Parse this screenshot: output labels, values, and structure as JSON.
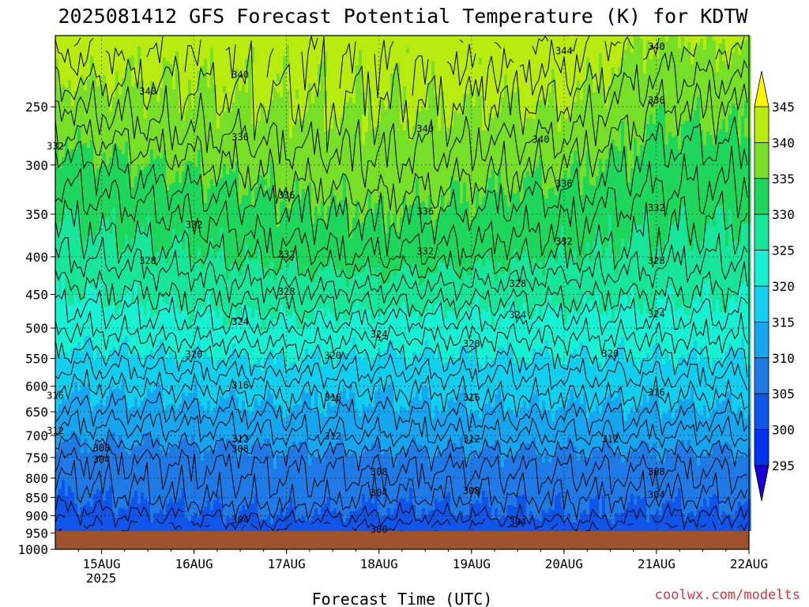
{
  "chart_data": {
    "type": "heatmap",
    "title": "2025081412 GFS Forecast Potential Temperature (K) for KDTW",
    "xlabel": "Forecast Time (UTC)",
    "ylabel": "",
    "y_axis": {
      "scale": "log",
      "inverted": true,
      "range": [
        200,
        1000
      ],
      "ticks": [
        250,
        300,
        350,
        400,
        450,
        500,
        550,
        600,
        650,
        700,
        750,
        800,
        850,
        900,
        950,
        1000
      ],
      "tick_labels": [
        "250",
        "300",
        "350",
        "400",
        "450",
        "500",
        "550",
        "600",
        "650",
        "700",
        "750",
        "800",
        "850",
        "900",
        "950",
        "1000"
      ]
    },
    "x_axis": {
      "range": [
        "2025-08-14T12",
        "2025-08-22T00"
      ],
      "ticks": [
        "2025-08-15T00",
        "2025-08-16T00",
        "2025-08-17T00",
        "2025-08-18T00",
        "2025-08-19T00",
        "2025-08-20T00",
        "2025-08-21T00",
        "2025-08-22T00"
      ],
      "tick_labels": [
        "15AUG",
        "16AUG",
        "17AUG",
        "18AUG",
        "19AUG",
        "20AUG",
        "21AUG",
        "22AUG"
      ],
      "year_label": "2025"
    },
    "colorbar": {
      "levels": [
        295,
        300,
        305,
        310,
        315,
        320,
        325,
        330,
        335,
        340,
        345
      ],
      "labels": [
        "295",
        "300",
        "305",
        "310",
        "315",
        "320",
        "325",
        "330",
        "335",
        "340",
        "345"
      ],
      "colors": [
        "#1a00d6",
        "#0033ee",
        "#0f55ea",
        "#1f7ae6",
        "#16a5ee",
        "#12cfef",
        "#18f0d4",
        "#17e69a",
        "#1ed65c",
        "#78df28",
        "#b8ec10",
        "#fcf400"
      ],
      "extend": "both"
    },
    "profiles": [
      {
        "time": "2025-08-14T12",
        "levels": [
          {
            "pressure": 1000,
            "theta": 300
          },
          {
            "pressure": 950,
            "theta": 301
          },
          {
            "pressure": 900,
            "theta": 303
          },
          {
            "pressure": 850,
            "theta": 305
          },
          {
            "pressure": 750,
            "theta": 308
          },
          {
            "pressure": 700,
            "theta": 311
          },
          {
            "pressure": 600,
            "theta": 316
          },
          {
            "pressure": 500,
            "theta": 322
          },
          {
            "pressure": 400,
            "theta": 328
          },
          {
            "pressure": 300,
            "theta": 333
          },
          {
            "pressure": 250,
            "theta": 338
          },
          {
            "pressure": 200,
            "theta": 344
          }
        ]
      },
      {
        "time": "2025-08-15T12",
        "levels": [
          {
            "pressure": 1000,
            "theta": 299
          },
          {
            "pressure": 950,
            "theta": 302
          },
          {
            "pressure": 900,
            "theta": 304
          },
          {
            "pressure": 850,
            "theta": 306
          },
          {
            "pressure": 750,
            "theta": 308
          },
          {
            "pressure": 700,
            "theta": 311
          },
          {
            "pressure": 600,
            "theta": 316
          },
          {
            "pressure": 500,
            "theta": 323
          },
          {
            "pressure": 400,
            "theta": 329
          },
          {
            "pressure": 300,
            "theta": 335
          },
          {
            "pressure": 250,
            "theta": 339
          },
          {
            "pressure": 200,
            "theta": 342
          }
        ]
      },
      {
        "time": "2025-08-17T00",
        "levels": [
          {
            "pressure": 1000,
            "theta": 301
          },
          {
            "pressure": 950,
            "theta": 302
          },
          {
            "pressure": 900,
            "theta": 305
          },
          {
            "pressure": 850,
            "theta": 307
          },
          {
            "pressure": 750,
            "theta": 309
          },
          {
            "pressure": 700,
            "theta": 312
          },
          {
            "pressure": 600,
            "theta": 317
          },
          {
            "pressure": 500,
            "theta": 324
          },
          {
            "pressure": 400,
            "theta": 331
          },
          {
            "pressure": 300,
            "theta": 337
          },
          {
            "pressure": 250,
            "theta": 340
          },
          {
            "pressure": 200,
            "theta": 342
          }
        ]
      },
      {
        "time": "2025-08-18T00",
        "levels": [
          {
            "pressure": 1000,
            "theta": 299
          },
          {
            "pressure": 950,
            "theta": 301
          },
          {
            "pressure": 900,
            "theta": 304
          },
          {
            "pressure": 850,
            "theta": 306
          },
          {
            "pressure": 750,
            "theta": 309
          },
          {
            "pressure": 700,
            "theta": 312
          },
          {
            "pressure": 600,
            "theta": 316
          },
          {
            "pressure": 500,
            "theta": 323
          },
          {
            "pressure": 400,
            "theta": 332
          },
          {
            "pressure": 300,
            "theta": 338
          },
          {
            "pressure": 250,
            "theta": 340
          },
          {
            "pressure": 200,
            "theta": 342
          }
        ]
      },
      {
        "time": "2025-08-19T00",
        "levels": [
          {
            "pressure": 1000,
            "theta": 299
          },
          {
            "pressure": 950,
            "theta": 301
          },
          {
            "pressure": 900,
            "theta": 304
          },
          {
            "pressure": 850,
            "theta": 306
          },
          {
            "pressure": 750,
            "theta": 309
          },
          {
            "pressure": 700,
            "theta": 312
          },
          {
            "pressure": 600,
            "theta": 317
          },
          {
            "pressure": 500,
            "theta": 323
          },
          {
            "pressure": 400,
            "theta": 331
          },
          {
            "pressure": 300,
            "theta": 337
          },
          {
            "pressure": 250,
            "theta": 340
          },
          {
            "pressure": 200,
            "theta": 343
          }
        ]
      },
      {
        "time": "2025-08-20T00",
        "levels": [
          {
            "pressure": 1000,
            "theta": 300
          },
          {
            "pressure": 950,
            "theta": 302
          },
          {
            "pressure": 900,
            "theta": 305
          },
          {
            "pressure": 850,
            "theta": 306
          },
          {
            "pressure": 750,
            "theta": 309
          },
          {
            "pressure": 700,
            "theta": 312
          },
          {
            "pressure": 600,
            "theta": 317
          },
          {
            "pressure": 500,
            "theta": 323
          },
          {
            "pressure": 400,
            "theta": 330
          },
          {
            "pressure": 300,
            "theta": 336
          },
          {
            "pressure": 250,
            "theta": 340
          },
          {
            "pressure": 200,
            "theta": 344
          }
        ]
      },
      {
        "time": "2025-08-21T00",
        "levels": [
          {
            "pressure": 1000,
            "theta": 300
          },
          {
            "pressure": 950,
            "theta": 302
          },
          {
            "pressure": 900,
            "theta": 304
          },
          {
            "pressure": 850,
            "theta": 306
          },
          {
            "pressure": 750,
            "theta": 309
          },
          {
            "pressure": 700,
            "theta": 312
          },
          {
            "pressure": 600,
            "theta": 317
          },
          {
            "pressure": 500,
            "theta": 323
          },
          {
            "pressure": 400,
            "theta": 329
          },
          {
            "pressure": 300,
            "theta": 333
          },
          {
            "pressure": 250,
            "theta": 336
          },
          {
            "pressure": 200,
            "theta": 340
          }
        ]
      },
      {
        "time": "2025-08-22T00",
        "levels": [
          {
            "pressure": 1000,
            "theta": 300
          },
          {
            "pressure": 950,
            "theta": 302
          },
          {
            "pressure": 900,
            "theta": 304
          },
          {
            "pressure": 850,
            "theta": 306
          },
          {
            "pressure": 750,
            "theta": 309
          },
          {
            "pressure": 700,
            "theta": 312
          },
          {
            "pressure": 600,
            "theta": 317
          },
          {
            "pressure": 500,
            "theta": 323
          },
          {
            "pressure": 400,
            "theta": 328
          },
          {
            "pressure": 300,
            "theta": 333
          },
          {
            "pressure": 250,
            "theta": 336
          },
          {
            "pressure": 200,
            "theta": 341
          }
        ]
      }
    ],
    "contour_labels": [
      {
        "time": "2025-08-15T12",
        "pressure": 238,
        "value": "340"
      },
      {
        "time": "2025-08-16T12",
        "pressure": 226,
        "value": "340"
      },
      {
        "time": "2025-08-18T12",
        "pressure": 268,
        "value": "340"
      },
      {
        "time": "2025-08-19T18",
        "pressure": 277,
        "value": "340"
      },
      {
        "time": "2025-08-20T00",
        "pressure": 210,
        "value": "344"
      },
      {
        "time": "2025-08-21T00",
        "pressure": 207,
        "value": "340"
      },
      {
        "time": "2025-08-21T00",
        "pressure": 245,
        "value": "336"
      },
      {
        "time": "2025-08-14T12",
        "pressure": 283,
        "value": "332"
      },
      {
        "time": "2025-08-16T12",
        "pressure": 275,
        "value": "336"
      },
      {
        "time": "2025-08-17T00",
        "pressure": 330,
        "value": "336"
      },
      {
        "time": "2025-08-18T12",
        "pressure": 347,
        "value": "336"
      },
      {
        "time": "2025-08-20T00",
        "pressure": 318,
        "value": "336"
      },
      {
        "time": "2025-08-21T00",
        "pressure": 343,
        "value": "332"
      },
      {
        "time": "2025-08-16T00",
        "pressure": 362,
        "value": "332"
      },
      {
        "time": "2025-08-17T00",
        "pressure": 397,
        "value": "332"
      },
      {
        "time": "2025-08-18T12",
        "pressure": 393,
        "value": "332"
      },
      {
        "time": "2025-08-20T00",
        "pressure": 381,
        "value": "332"
      },
      {
        "time": "2025-08-15T12",
        "pressure": 405,
        "value": "328"
      },
      {
        "time": "2025-08-17T00",
        "pressure": 446,
        "value": "328"
      },
      {
        "time": "2025-08-19T12",
        "pressure": 435,
        "value": "328"
      },
      {
        "time": "2025-08-21T00",
        "pressure": 405,
        "value": "328"
      },
      {
        "time": "2025-08-16T12",
        "pressure": 490,
        "value": "324"
      },
      {
        "time": "2025-08-18T00",
        "pressure": 510,
        "value": "324"
      },
      {
        "time": "2025-08-19T12",
        "pressure": 480,
        "value": "324"
      },
      {
        "time": "2025-08-21T00",
        "pressure": 479,
        "value": "324"
      },
      {
        "time": "2025-08-16T00",
        "pressure": 543,
        "value": "320"
      },
      {
        "time": "2025-08-17T12",
        "pressure": 545,
        "value": "320"
      },
      {
        "time": "2025-08-19T00",
        "pressure": 525,
        "value": "320"
      },
      {
        "time": "2025-08-20T12",
        "pressure": 542,
        "value": "320"
      },
      {
        "time": "2025-08-14T12",
        "pressure": 618,
        "value": "316"
      },
      {
        "time": "2025-08-16T12",
        "pressure": 598,
        "value": "316"
      },
      {
        "time": "2025-08-17T12",
        "pressure": 622,
        "value": "316"
      },
      {
        "time": "2025-08-19T00",
        "pressure": 622,
        "value": "316"
      },
      {
        "time": "2025-08-21T00",
        "pressure": 612,
        "value": "316"
      },
      {
        "time": "2025-08-14T12",
        "pressure": 690,
        "value": "312"
      },
      {
        "time": "2025-08-16T12",
        "pressure": 708,
        "value": "312"
      },
      {
        "time": "2025-08-17T12",
        "pressure": 702,
        "value": "312"
      },
      {
        "time": "2025-08-19T00",
        "pressure": 708,
        "value": "312"
      },
      {
        "time": "2025-08-20T12",
        "pressure": 708,
        "value": "312"
      },
      {
        "time": "2025-08-15T00",
        "pressure": 728,
        "value": "308"
      },
      {
        "time": "2025-08-16T12",
        "pressure": 730,
        "value": "308"
      },
      {
        "time": "2025-08-18T00",
        "pressure": 785,
        "value": "308"
      },
      {
        "time": "2025-08-19T00",
        "pressure": 833,
        "value": "308"
      },
      {
        "time": "2025-08-21T00",
        "pressure": 785,
        "value": "308"
      },
      {
        "time": "2025-08-15T00",
        "pressure": 755,
        "value": "304"
      },
      {
        "time": "2025-08-16T12",
        "pressure": 912,
        "value": "304"
      },
      {
        "time": "2025-08-18T00",
        "pressure": 838,
        "value": "304"
      },
      {
        "time": "2025-08-19T12",
        "pressure": 918,
        "value": "304"
      },
      {
        "time": "2025-08-21T00",
        "pressure": 843,
        "value": "304"
      },
      {
        "time": "2025-08-18T00",
        "pressure": 940,
        "value": "300"
      }
    ],
    "grid": true,
    "surface_fill_color": "#a0522d",
    "credit": "coolwx.com/modelts",
    "credit_color": "#e0303a"
  }
}
